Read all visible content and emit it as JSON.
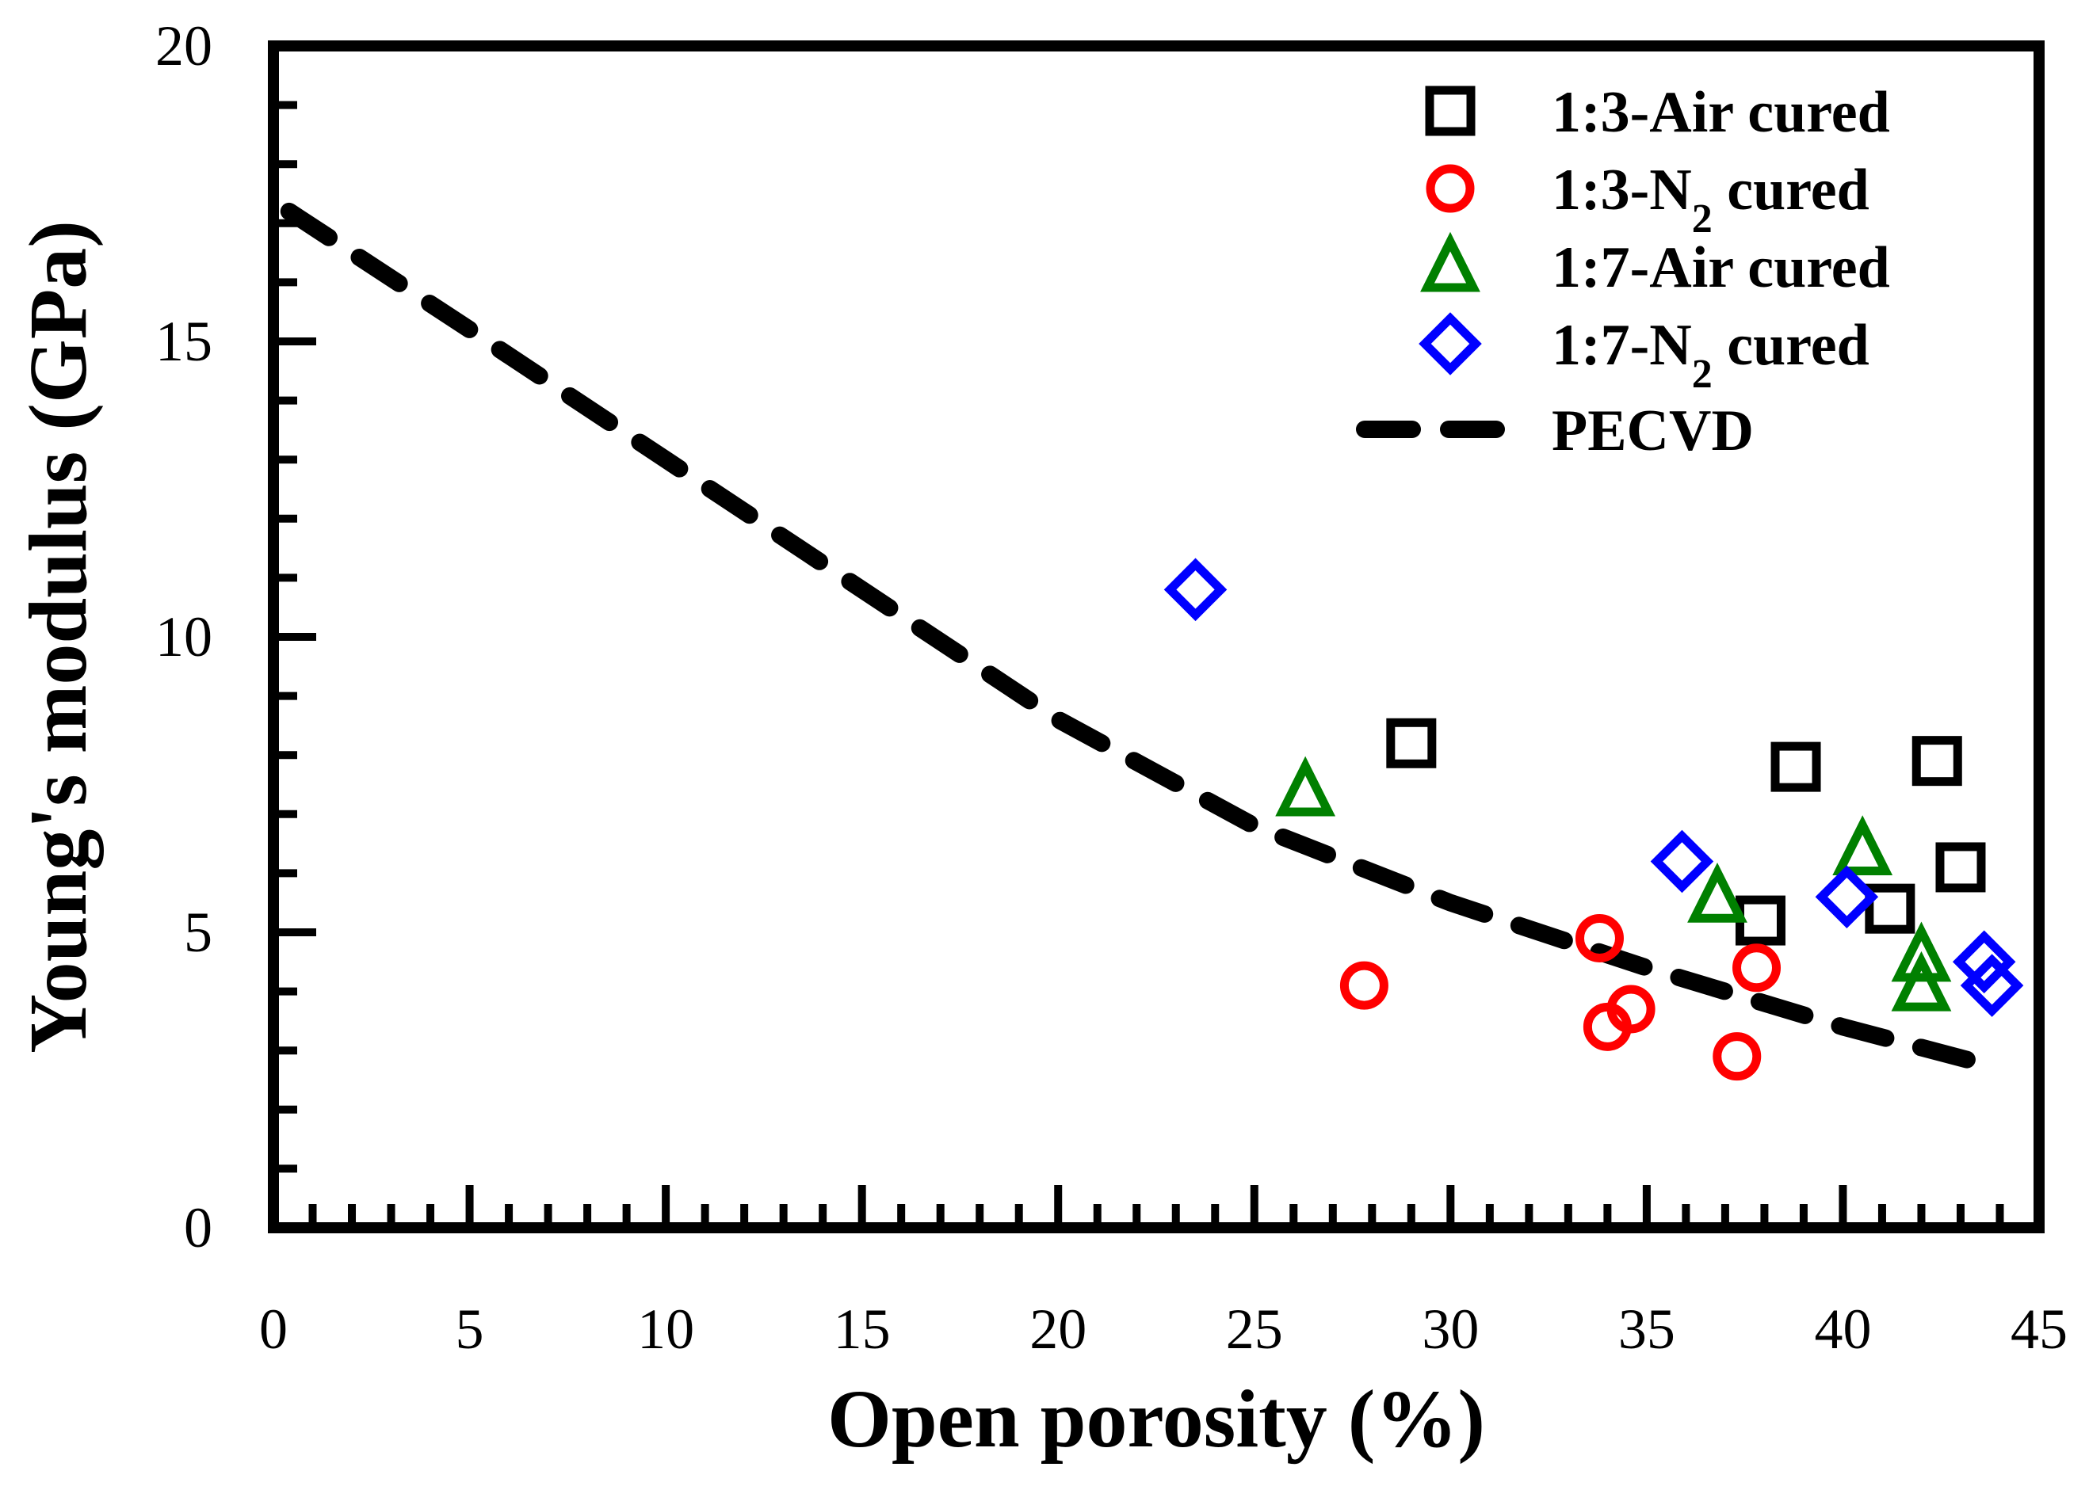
{
  "chart_data": {
    "type": "scatter",
    "title": "",
    "xlabel": "Open porosity (%)",
    "ylabel": "Young's modulus (GPa)",
    "xlim": [
      0,
      45
    ],
    "ylim": [
      0,
      20
    ],
    "xticks": [
      0,
      5,
      10,
      15,
      20,
      25,
      30,
      35,
      40,
      45
    ],
    "yticks": [
      0,
      5,
      10,
      15,
      20
    ],
    "xtick_labels": [
      "0",
      "5",
      "10",
      "15",
      "20",
      "25",
      "30",
      "35",
      "40",
      "45"
    ],
    "ytick_labels": [
      "0",
      "5",
      "10",
      "15",
      "20"
    ],
    "grid": false,
    "legend_position": "top-right",
    "series": [
      {
        "name": "1:3-Air cured",
        "label_main": "1:3-Air cured",
        "label_sub": "",
        "label_tail": "",
        "marker": "square",
        "color": "#000000",
        "points": [
          [
            29.0,
            8.2
          ],
          [
            37.9,
            5.2
          ],
          [
            38.8,
            7.8
          ],
          [
            41.2,
            5.4
          ],
          [
            42.4,
            7.9
          ],
          [
            43.0,
            6.1
          ]
        ]
      },
      {
        "name": "1:3-N2 cured",
        "label_main": "1:3-N",
        "label_sub": "2",
        "label_tail": " cured",
        "marker": "circle",
        "color": "#ff0000",
        "points": [
          [
            27.8,
            4.1
          ],
          [
            33.8,
            4.9
          ],
          [
            34.0,
            3.4
          ],
          [
            34.6,
            3.7
          ],
          [
            37.3,
            2.9
          ],
          [
            37.8,
            4.4
          ]
        ]
      },
      {
        "name": "1:7-Air cured",
        "label_main": "1:7-Air cured",
        "label_sub": "",
        "label_tail": "",
        "marker": "triangle",
        "color": "#008000",
        "points": [
          [
            26.3,
            7.4
          ],
          [
            36.8,
            5.6
          ],
          [
            40.5,
            6.4
          ],
          [
            42.0,
            4.6
          ],
          [
            42.0,
            4.1
          ]
        ]
      },
      {
        "name": "1:7-N2 cured",
        "label_main": "1:7-N",
        "label_sub": "2",
        "label_tail": " cured",
        "marker": "diamond",
        "color": "#0000ff",
        "points": [
          [
            23.5,
            10.8
          ],
          [
            35.9,
            6.2
          ],
          [
            40.1,
            5.6
          ],
          [
            43.6,
            4.5
          ],
          [
            43.8,
            4.1
          ]
        ]
      }
    ],
    "lines": [
      {
        "name": "PECVD",
        "label_main": "PECVD",
        "style": "dashed",
        "color": "#000000",
        "points": [
          [
            0.4,
            17.2
          ],
          [
            5,
            15.2
          ],
          [
            10,
            13.0
          ],
          [
            15,
            10.8
          ],
          [
            20,
            8.6
          ],
          [
            25,
            6.8
          ],
          [
            30,
            5.5
          ],
          [
            35,
            4.4
          ],
          [
            40,
            3.4
          ],
          [
            44.0,
            2.7
          ]
        ]
      }
    ]
  }
}
